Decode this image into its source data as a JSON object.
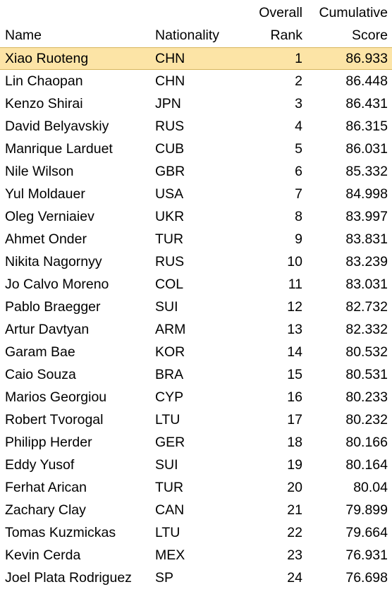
{
  "headers": {
    "name": "Name",
    "nationality": "Nationality",
    "rank_line1": "Overall",
    "rank_line2": "Rank",
    "score_line1": "Cumulative",
    "score_line2": "Score"
  },
  "highlight_color": "#fce4a6",
  "rows": [
    {
      "name": "Xiao Ruoteng",
      "nationality": "CHN",
      "rank": "1",
      "score": "86.933"
    },
    {
      "name": "Lin Chaopan",
      "nationality": "CHN",
      "rank": "2",
      "score": "86.448"
    },
    {
      "name": "Kenzo Shirai",
      "nationality": "JPN",
      "rank": "3",
      "score": "86.431"
    },
    {
      "name": "David Belyavskiy",
      "nationality": "RUS",
      "rank": "4",
      "score": "86.315"
    },
    {
      "name": "Manrique Larduet",
      "nationality": "CUB",
      "rank": "5",
      "score": "86.031"
    },
    {
      "name": "Nile Wilson",
      "nationality": "GBR",
      "rank": "6",
      "score": "85.332"
    },
    {
      "name": "Yul Moldauer",
      "nationality": "USA",
      "rank": "7",
      "score": "84.998"
    },
    {
      "name": "Oleg Verniaiev",
      "nationality": "UKR",
      "rank": "8",
      "score": "83.997"
    },
    {
      "name": "Ahmet Onder",
      "nationality": "TUR",
      "rank": "9",
      "score": "83.831"
    },
    {
      "name": "Nikita Nagornyy",
      "nationality": "RUS",
      "rank": "10",
      "score": "83.239"
    },
    {
      "name": "Jo Calvo Moreno",
      "nationality": "COL",
      "rank": "11",
      "score": "83.031"
    },
    {
      "name": "Pablo Braegger",
      "nationality": "SUI",
      "rank": "12",
      "score": "82.732"
    },
    {
      "name": "Artur Davtyan",
      "nationality": "ARM",
      "rank": "13",
      "score": "82.332"
    },
    {
      "name": "Garam Bae",
      "nationality": "KOR",
      "rank": "14",
      "score": "80.532"
    },
    {
      "name": "Caio Souza",
      "nationality": "BRA",
      "rank": "15",
      "score": "80.531"
    },
    {
      "name": "Marios Georgiou",
      "nationality": "CYP",
      "rank": "16",
      "score": "80.233"
    },
    {
      "name": "Robert Tvorogal",
      "nationality": "LTU",
      "rank": "17",
      "score": "80.232"
    },
    {
      "name": "Philipp Herder",
      "nationality": "GER",
      "rank": "18",
      "score": "80.166"
    },
    {
      "name": "Eddy Yusof",
      "nationality": "SUI",
      "rank": "19",
      "score": "80.164"
    },
    {
      "name": "Ferhat Arican",
      "nationality": "TUR",
      "rank": "20",
      "score": "80.04"
    },
    {
      "name": "Zachary Clay",
      "nationality": "CAN",
      "rank": "21",
      "score": "79.899"
    },
    {
      "name": "Tomas Kuzmickas",
      "nationality": "LTU",
      "rank": "22",
      "score": "79.664"
    },
    {
      "name": "Kevin Cerda",
      "nationality": "MEX",
      "rank": "23",
      "score": "76.931"
    },
    {
      "name": "Joel Plata Rodriguez",
      "nationality": "SP",
      "rank": "24",
      "score": "76.698"
    }
  ]
}
